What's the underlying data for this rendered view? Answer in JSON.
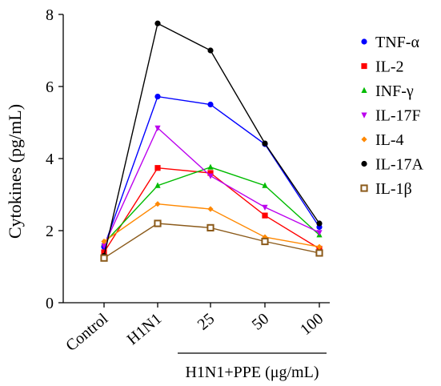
{
  "chart_data": {
    "type": "line",
    "ylabel": "Cytokines (pg/mL)",
    "xlabel": "",
    "ylim": [
      0,
      8
    ],
    "yticks": [
      0,
      2,
      4,
      6,
      8
    ],
    "grid": false,
    "legend_position": "right",
    "categories": [
      "Control",
      "H1N1",
      "25",
      "50",
      "100"
    ],
    "group_label": "H1N1+PPE (μg/mL)",
    "series": [
      {
        "name": "TNF-α",
        "marker": "circle",
        "color": "#0000ff",
        "values": [
          1.55,
          5.72,
          5.5,
          4.4,
          2.1
        ]
      },
      {
        "name": "IL-2",
        "marker": "square",
        "color": "#ff0000",
        "values": [
          1.4,
          3.74,
          3.6,
          2.42,
          1.5
        ]
      },
      {
        "name": "INF-γ",
        "marker": "triangle-up",
        "color": "#00bb00",
        "values": [
          1.65,
          3.25,
          3.76,
          3.25,
          1.88
        ]
      },
      {
        "name": "IL-17F",
        "marker": "triangle-down",
        "color": "#bb00ee",
        "values": [
          1.58,
          4.85,
          3.52,
          2.65,
          1.95
        ]
      },
      {
        "name": "IL-4",
        "marker": "diamond",
        "color": "#ff8800",
        "values": [
          1.7,
          2.74,
          2.6,
          1.82,
          1.55
        ]
      },
      {
        "name": "IL-17A",
        "marker": "circle",
        "color": "#000000",
        "values": [
          1.3,
          7.75,
          7.0,
          4.42,
          2.2
        ]
      },
      {
        "name": "IL-1β",
        "marker": "square-open",
        "color": "#8b5a1a",
        "values": [
          1.24,
          2.2,
          2.08,
          1.7,
          1.38
        ]
      }
    ]
  }
}
